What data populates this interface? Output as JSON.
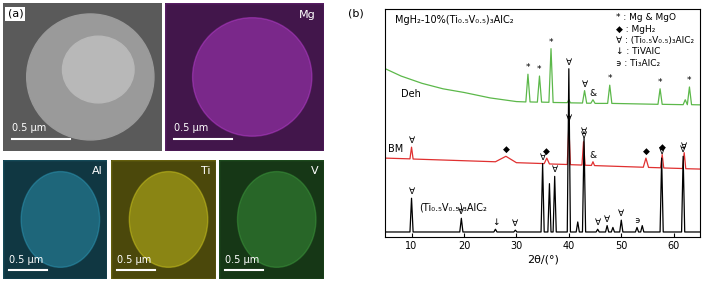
{
  "image_panel": {
    "label": "(a)",
    "sem": {
      "scale_bar": "0.5 μm"
    },
    "maps": [
      {
        "element": "Mg",
        "color": "#c040d8",
        "scale_bar": "0.5 μm"
      },
      {
        "element": "Al",
        "color": "#30a0c0",
        "scale_bar": "0.5 μm"
      },
      {
        "element": "Ti",
        "color": "#d8d020",
        "scale_bar": "0.5 μm"
      },
      {
        "element": "V",
        "color": "#40a040",
        "scale_bar": "0.5 μm"
      }
    ]
  },
  "chart_data": {
    "type": "line",
    "label": "(b)",
    "title": "MgH₂-10%(Ti₀.₅V₀.₅)₃AlC₂",
    "x_label": "2θ/(°)",
    "xlim": [
      5,
      65
    ],
    "xticks": [
      10,
      20,
      30,
      40,
      50,
      60
    ],
    "ylim": [
      0,
      125
    ],
    "yticks": [],
    "tick_labels": "x",
    "legend": "upper right",
    "legend_entries": [
      "* : Mg & MgO",
      "◆ : MgH₂",
      "∀ : (Ti₀.₅V₀.₅)₃AlC₂",
      "↓ : TiVAlC",
      "϶ : Ti₃AlC₂"
    ],
    "series": [
      {
        "name": "Deh",
        "color": "#5cb84a",
        "x": [
          5,
          8,
          12,
          16,
          20,
          25,
          30,
          31.8,
          32.2,
          32.6,
          34,
          34.4,
          34.8,
          36.2,
          36.6,
          37,
          39.7,
          40,
          40.3,
          42.6,
          43,
          43.4,
          44.2,
          44.6,
          45,
          47.4,
          47.8,
          48.2,
          57,
          57.4,
          57.8,
          61.8,
          62.2,
          62.6,
          63,
          63.4,
          65
        ],
        "values": [
          92,
          88,
          84,
          81,
          79,
          76,
          74,
          73.8,
          89,
          73.8,
          73.7,
          88,
          73.7,
          73.6,
          103,
          73.5,
          73.4,
          75,
          73.3,
          73.2,
          80,
          73.1,
          73.1,
          75,
          73,
          73,
          83,
          73,
          72.5,
          81,
          72.5,
          72.3,
          75,
          72.3,
          82,
          72.3,
          72.2
        ],
        "markers": [
          {
            "x": 32.2,
            "symbol": "*"
          },
          {
            "x": 34.4,
            "symbol": "*"
          },
          {
            "x": 36.6,
            "symbol": "*"
          },
          {
            "x": 43,
            "symbol": "∀"
          },
          {
            "x": 44.6,
            "symbol": "&"
          },
          {
            "x": 47.8,
            "symbol": "*"
          },
          {
            "x": 57.4,
            "symbol": "*"
          },
          {
            "x": 63,
            "symbol": "*"
          }
        ]
      },
      {
        "name": "BM",
        "color": "#e03030",
        "x": [
          5,
          9.7,
          10,
          10.3,
          26,
          28,
          30,
          35.3,
          35.8,
          36.3,
          39.7,
          40,
          40.3,
          42.5,
          42.8,
          43.1,
          44.3,
          44.6,
          44.9,
          54.2,
          54.7,
          55.2,
          57.5,
          57.8,
          58.1,
          61.7,
          62,
          62.3,
          65
        ],
        "values": [
          43,
          42.6,
          49,
          42.5,
          41,
          44,
          40.5,
          40,
          43,
          39.8,
          39.5,
          61,
          39.4,
          39.2,
          52,
          39.1,
          39,
          41,
          38.9,
          38,
          43,
          37.9,
          37.7,
          45,
          37.6,
          37.3,
          46,
          37.2,
          37
        ],
        "markers": [
          {
            "x": 10,
            "symbol": "∀"
          },
          {
            "x": 28,
            "symbol": "◆"
          },
          {
            "x": 35.8,
            "symbol": "◆"
          },
          {
            "x": 40,
            "symbol": "∀"
          },
          {
            "x": 42.8,
            "symbol": "∀"
          },
          {
            "x": 44.6,
            "symbol": "&"
          },
          {
            "x": 54.7,
            "symbol": "◆"
          },
          {
            "x": 57.8,
            "symbol": "◆"
          },
          {
            "x": 62,
            "symbol": "∀"
          }
        ]
      },
      {
        "name": "(Ti₀.₅V₀.₅)₃AlC₂",
        "color": "#000000",
        "x": [
          5,
          9.7,
          10,
          10.3,
          19.2,
          19.5,
          19.8,
          25.7,
          26,
          26.3,
          29.5,
          29.8,
          30.1,
          34.7,
          35,
          35.3,
          36,
          36.3,
          36.6,
          37,
          37.3,
          37.6,
          39.7,
          40,
          40.3,
          41.4,
          41.7,
          42,
          42.6,
          42.9,
          43.2,
          45.2,
          45.5,
          45.8,
          47,
          47.3,
          47.6,
          48.1,
          48.4,
          48.7,
          49.7,
          50,
          50.3,
          52.7,
          53,
          53.3,
          53.7,
          54,
          54.3,
          57.4,
          57.7,
          58,
          61.5,
          61.8,
          62.1,
          65
        ],
        "values": [
          2.5,
          2.5,
          21,
          2.5,
          2.5,
          10,
          2.5,
          2.5,
          4,
          2.5,
          2.5,
          3.5,
          2.5,
          2.5,
          40,
          2.5,
          2.5,
          29,
          2.5,
          2.5,
          33,
          2.5,
          2.5,
          92,
          2.5,
          2.5,
          8,
          2.5,
          2.5,
          54,
          2.5,
          2.5,
          4,
          2.5,
          2.5,
          6,
          2.5,
          2.5,
          5,
          2.5,
          2.5,
          9,
          2.5,
          2.5,
          5,
          2.5,
          2.5,
          6,
          2.5,
          2.5,
          43,
          2.5,
          2.5,
          44,
          2.5,
          2.5
        ],
        "markers": [
          {
            "x": 10,
            "symbol": "∀"
          },
          {
            "x": 19.5,
            "symbol": "∀"
          },
          {
            "x": 26,
            "symbol": "↓"
          },
          {
            "x": 29.8,
            "symbol": "∀"
          },
          {
            "x": 35,
            "symbol": "∀"
          },
          {
            "x": 37.3,
            "symbol": "∀"
          },
          {
            "x": 40,
            "symbol": "∀"
          },
          {
            "x": 42.9,
            "symbol": "∀"
          },
          {
            "x": 45.5,
            "symbol": "∀"
          },
          {
            "x": 47.3,
            "symbol": "∀"
          },
          {
            "x": 50,
            "symbol": "∀"
          },
          {
            "x": 53,
            "symbol": "϶"
          },
          {
            "x": 57.7,
            "symbol": "∀"
          },
          {
            "x": 61.8,
            "symbol": "∀"
          }
        ]
      }
    ]
  }
}
